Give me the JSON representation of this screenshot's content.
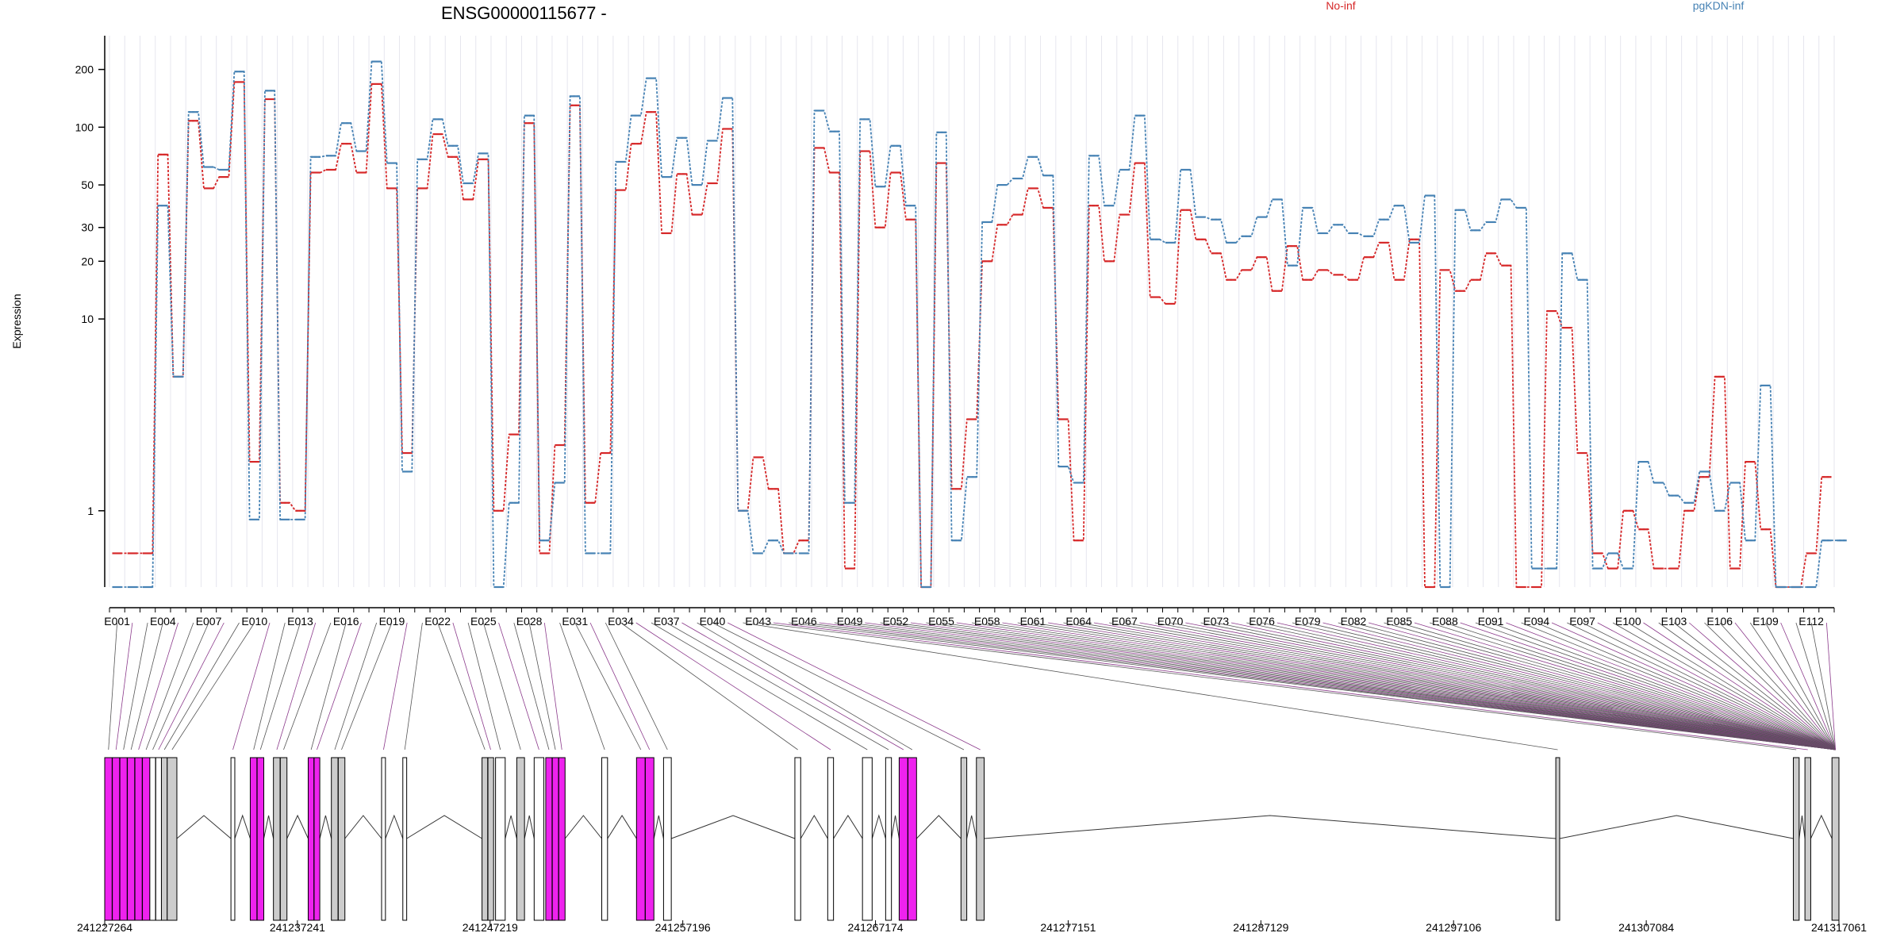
{
  "chart_data": {
    "type": "line",
    "title": "ENSG00000115677 -",
    "ylabel": "Expression",
    "scale": "log",
    "yticks": [
      1,
      10,
      20,
      30,
      50,
      100,
      200
    ],
    "ylim": [
      0.4,
      300
    ],
    "series": [
      {
        "name": "No-inf",
        "color": "#d62728",
        "values": [
          0.6,
          0.6,
          0.6,
          72,
          5,
          108,
          48,
          55,
          172,
          1.8,
          140,
          1.1,
          1.0,
          58,
          60,
          82,
          58,
          168,
          48,
          2,
          48,
          92,
          70,
          42,
          68,
          1.0,
          2.5,
          105,
          0.6,
          2.2,
          130,
          1.1,
          2.0,
          47,
          82,
          120,
          28,
          57,
          35,
          51,
          98,
          1.0,
          1.9,
          1.3,
          0.6,
          0.7,
          78,
          58,
          0.5,
          75,
          30,
          58,
          33,
          0.4,
          65,
          1.3,
          3,
          20,
          31,
          35,
          48,
          38,
          3,
          0.7,
          39,
          20,
          35,
          65,
          13,
          12,
          37,
          26,
          22,
          16,
          18,
          21,
          14,
          24,
          16,
          18,
          17,
          16,
          21,
          25,
          16,
          26,
          0.4,
          18,
          14,
          16,
          22,
          19,
          0.4,
          0.4,
          11,
          9,
          2,
          0.6,
          0.5,
          1.0,
          0.8,
          0.5,
          0.5,
          1.0,
          1.5,
          5,
          0.5,
          1.8,
          0.8,
          0.4,
          0.4,
          0.6,
          1.5
        ]
      },
      {
        "name": "pgKDN-inf",
        "color": "#4682b4",
        "values": [
          0.4,
          0.4,
          0.4,
          39,
          5,
          120,
          62,
          60,
          195,
          0.9,
          155,
          0.9,
          0.9,
          70,
          71,
          105,
          75,
          220,
          65,
          1.6,
          68,
          110,
          80,
          51,
          73,
          0.4,
          1.1,
          115,
          0.7,
          1.4,
          145,
          0.6,
          0.6,
          66,
          115,
          180,
          55,
          88,
          50,
          85,
          142,
          1.0,
          0.6,
          0.7,
          0.6,
          0.6,
          122,
          95,
          1.1,
          110,
          49,
          80,
          39,
          0.4,
          94,
          0.7,
          1.5,
          32,
          50,
          54,
          70,
          56,
          1.7,
          1.4,
          71,
          39,
          60,
          115,
          26,
          25,
          60,
          34,
          33,
          25,
          27,
          34,
          42,
          19,
          38,
          28,
          31,
          28,
          27,
          33,
          39,
          25,
          44,
          0.4,
          37,
          29,
          32,
          42,
          38,
          0.5,
          0.5,
          22,
          16,
          0.5,
          0.6,
          0.5,
          1.8,
          1.4,
          1.2,
          1.1,
          1.6,
          1.0,
          1.4,
          0.7,
          4.5,
          0.4,
          0.4,
          0.4,
          0.7,
          0.7
        ]
      }
    ],
    "exon_labels": [
      "E001",
      "E004",
      "E007",
      "E010",
      "E013",
      "E016",
      "E019",
      "E022",
      "E025",
      "E028",
      "E031",
      "E034",
      "E037",
      "E040",
      "E043",
      "E046",
      "E049",
      "E052",
      "E055",
      "E058",
      "E061",
      "E064",
      "E067",
      "E070",
      "E073",
      "E076",
      "E079",
      "E082",
      "E085",
      "E088",
      "E091",
      "E094",
      "E097",
      "E100",
      "E103",
      "E106",
      "E109",
      "E112"
    ],
    "exon_count": 113,
    "genomic_ticks": [
      "241227264",
      "241237241",
      "241247219",
      "241257196",
      "241267174",
      "241277151",
      "241287129",
      "241297106",
      "241307084",
      "241317061"
    ],
    "genomic_range": [
      241227264,
      241317061
    ],
    "colors": {
      "highlight": "#ee22ee",
      "exon_gray": "#cccccc",
      "tick_gray": "#555555"
    }
  }
}
